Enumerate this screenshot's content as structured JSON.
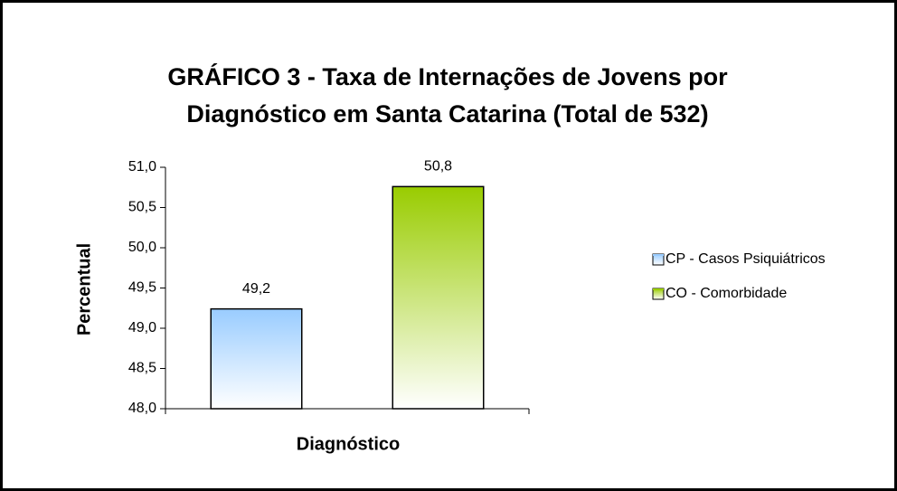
{
  "chart_data": {
    "type": "bar",
    "title": [
      "GRÁFICO 3 - Taxa de Internações  de Jovens por",
      "Diagnóstico em Santa Catarina (Total de 532)"
    ],
    "ylabel": "Percentual",
    "xlabel": "Diagnóstico",
    "series": [
      {
        "name": "CP - Casos Psiquiátricos",
        "color": "#99ccff",
        "values": [
          49.24
        ],
        "value_labels": [
          "49,2"
        ]
      },
      {
        "name": "CO - Comorbidade",
        "color": "#99cc00",
        "values": [
          50.76
        ],
        "value_labels": [
          "50,8"
        ]
      }
    ],
    "ylim": [
      48,
      51
    ],
    "yticks": [
      {
        "value": 48,
        "label": "48,0"
      },
      {
        "value": 48.5,
        "label": "48,5"
      },
      {
        "value": 49,
        "label": "49,0"
      },
      {
        "value": 49.5,
        "label": "49,5"
      },
      {
        "value": 50,
        "label": "50,0"
      },
      {
        "value": 50.5,
        "label": "50,5"
      },
      {
        "value": 51,
        "label": "51,0"
      }
    ],
    "grid": false,
    "legend": "right"
  }
}
